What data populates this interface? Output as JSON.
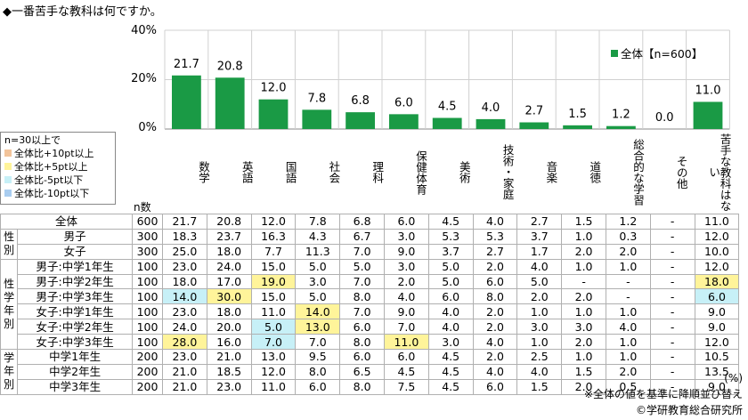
{
  "title": "◆一番苦手な教科は何ですか。",
  "colors": {
    "bar": "#1a9a45",
    "plus10": "#f2c49b",
    "plus5": "#fff49a",
    "minus5": "#c7f0f7",
    "minus10": "#a9cdf0"
  },
  "legend_top": "全体【n=600】",
  "legend_box": {
    "title": "n=30以上で",
    "items": [
      {
        "label": "全体比+10pt以上",
        "color": "#f2c49b"
      },
      {
        "label": "全体比+5pt以上",
        "color": "#fff49a"
      },
      {
        "label": "全体比-5pt以下",
        "color": "#c7f0f7"
      },
      {
        "label": "全体比-10pt以下",
        "color": "#a9cdf0"
      }
    ]
  },
  "n_label": "n数",
  "unit": "(%)",
  "note": "※全体の値を基準に降順並び替え",
  "copyright": "©学研教育総合研究所",
  "chart_data": {
    "type": "bar",
    "categories": [
      "数学",
      "英語",
      "国語",
      "社会",
      "理科",
      "保健体育",
      "美術",
      "技術・家庭",
      "音楽",
      "道徳",
      "総合的な学習",
      "その他",
      "苦手な教科はない"
    ],
    "values": [
      21.7,
      20.8,
      12.0,
      7.8,
      6.8,
      6.0,
      4.5,
      4.0,
      2.7,
      1.5,
      1.2,
      0.0,
      11.0
    ],
    "value_labels": [
      "21.7",
      "20.8",
      "12.0",
      "7.8",
      "6.8",
      "6.0",
      "4.5",
      "4.0",
      "2.7",
      "1.5",
      "1.2",
      "0.0",
      "11.0"
    ],
    "series_name": "全体【n=600】",
    "ylim": [
      0,
      40
    ],
    "yticks": [
      "0%",
      "20%",
      "40%"
    ]
  },
  "table": {
    "rows": [
      {
        "group": "",
        "label": "全体",
        "n": "600",
        "values": [
          "21.7",
          "20.8",
          "12.0",
          "7.8",
          "6.8",
          "6.0",
          "4.5",
          "4.0",
          "2.7",
          "1.5",
          "1.2",
          "-",
          "11.0"
        ],
        "hl": {}
      },
      {
        "group": "性別",
        "span": 2,
        "label": "男子",
        "n": "300",
        "values": [
          "18.3",
          "23.7",
          "16.3",
          "4.3",
          "6.7",
          "3.0",
          "5.3",
          "5.3",
          "3.7",
          "1.0",
          "0.3",
          "-",
          "12.0"
        ],
        "hl": {}
      },
      {
        "label": "女子",
        "n": "300",
        "values": [
          "25.0",
          "18.0",
          "7.7",
          "11.3",
          "7.0",
          "9.0",
          "3.7",
          "2.7",
          "1.7",
          "2.0",
          "2.0",
          "-",
          "10.0"
        ],
        "hl": {}
      },
      {
        "group": "性学年別",
        "span": 6,
        "label": "男子:中学1年生",
        "n": "100",
        "values": [
          "23.0",
          "24.0",
          "15.0",
          "5.0",
          "5.0",
          "3.0",
          "5.0",
          "2.0",
          "4.0",
          "1.0",
          "1.0",
          "-",
          "12.0"
        ],
        "hl": {}
      },
      {
        "label": "男子:中学2年生",
        "n": "100",
        "values": [
          "18.0",
          "17.0",
          "19.0",
          "3.0",
          "7.0",
          "2.0",
          "5.0",
          "6.0",
          "5.0",
          "-",
          "-",
          "-",
          "18.0"
        ],
        "hl": {
          "2": "plus5",
          "12": "plus5"
        }
      },
      {
        "label": "男子:中学3年生",
        "n": "100",
        "values": [
          "14.0",
          "30.0",
          "15.0",
          "5.0",
          "8.0",
          "4.0",
          "6.0",
          "8.0",
          "2.0",
          "2.0",
          "-",
          "-",
          "6.0"
        ],
        "hl": {
          "0": "minus5",
          "1": "plus5",
          "12": "minus5"
        }
      },
      {
        "label": "女子:中学1年生",
        "n": "100",
        "values": [
          "23.0",
          "18.0",
          "11.0",
          "14.0",
          "7.0",
          "9.0",
          "4.0",
          "2.0",
          "1.0",
          "1.0",
          "1.0",
          "-",
          "9.0"
        ],
        "hl": {
          "3": "plus5"
        }
      },
      {
        "label": "女子:中学2年生",
        "n": "100",
        "values": [
          "24.0",
          "20.0",
          "5.0",
          "13.0",
          "6.0",
          "7.0",
          "4.0",
          "2.0",
          "3.0",
          "3.0",
          "4.0",
          "-",
          "9.0"
        ],
        "hl": {
          "2": "minus5",
          "3": "plus5"
        }
      },
      {
        "label": "女子:中学3年生",
        "n": "100",
        "values": [
          "28.0",
          "16.0",
          "7.0",
          "7.0",
          "8.0",
          "11.0",
          "3.0",
          "4.0",
          "1.0",
          "2.0",
          "1.0",
          "-",
          "12.0"
        ],
        "hl": {
          "0": "plus5",
          "2": "minus5",
          "5": "plus5"
        }
      },
      {
        "group": "学年別",
        "span": 3,
        "label": "中学1年生",
        "n": "200",
        "values": [
          "23.0",
          "21.0",
          "13.0",
          "9.5",
          "6.0",
          "6.0",
          "4.5",
          "2.0",
          "2.5",
          "1.0",
          "1.0",
          "-",
          "10.5"
        ],
        "hl": {}
      },
      {
        "label": "中学2年生",
        "n": "200",
        "values": [
          "21.0",
          "18.5",
          "12.0",
          "8.0",
          "6.5",
          "4.5",
          "4.5",
          "4.0",
          "4.0",
          "1.5",
          "2.0",
          "-",
          "13.5"
        ],
        "hl": {}
      },
      {
        "label": "中学3年生",
        "n": "200",
        "values": [
          "21.0",
          "23.0",
          "11.0",
          "6.0",
          "8.0",
          "7.5",
          "4.5",
          "6.0",
          "1.5",
          "2.0",
          "0.5",
          "-",
          "9.0"
        ],
        "hl": {}
      }
    ]
  }
}
